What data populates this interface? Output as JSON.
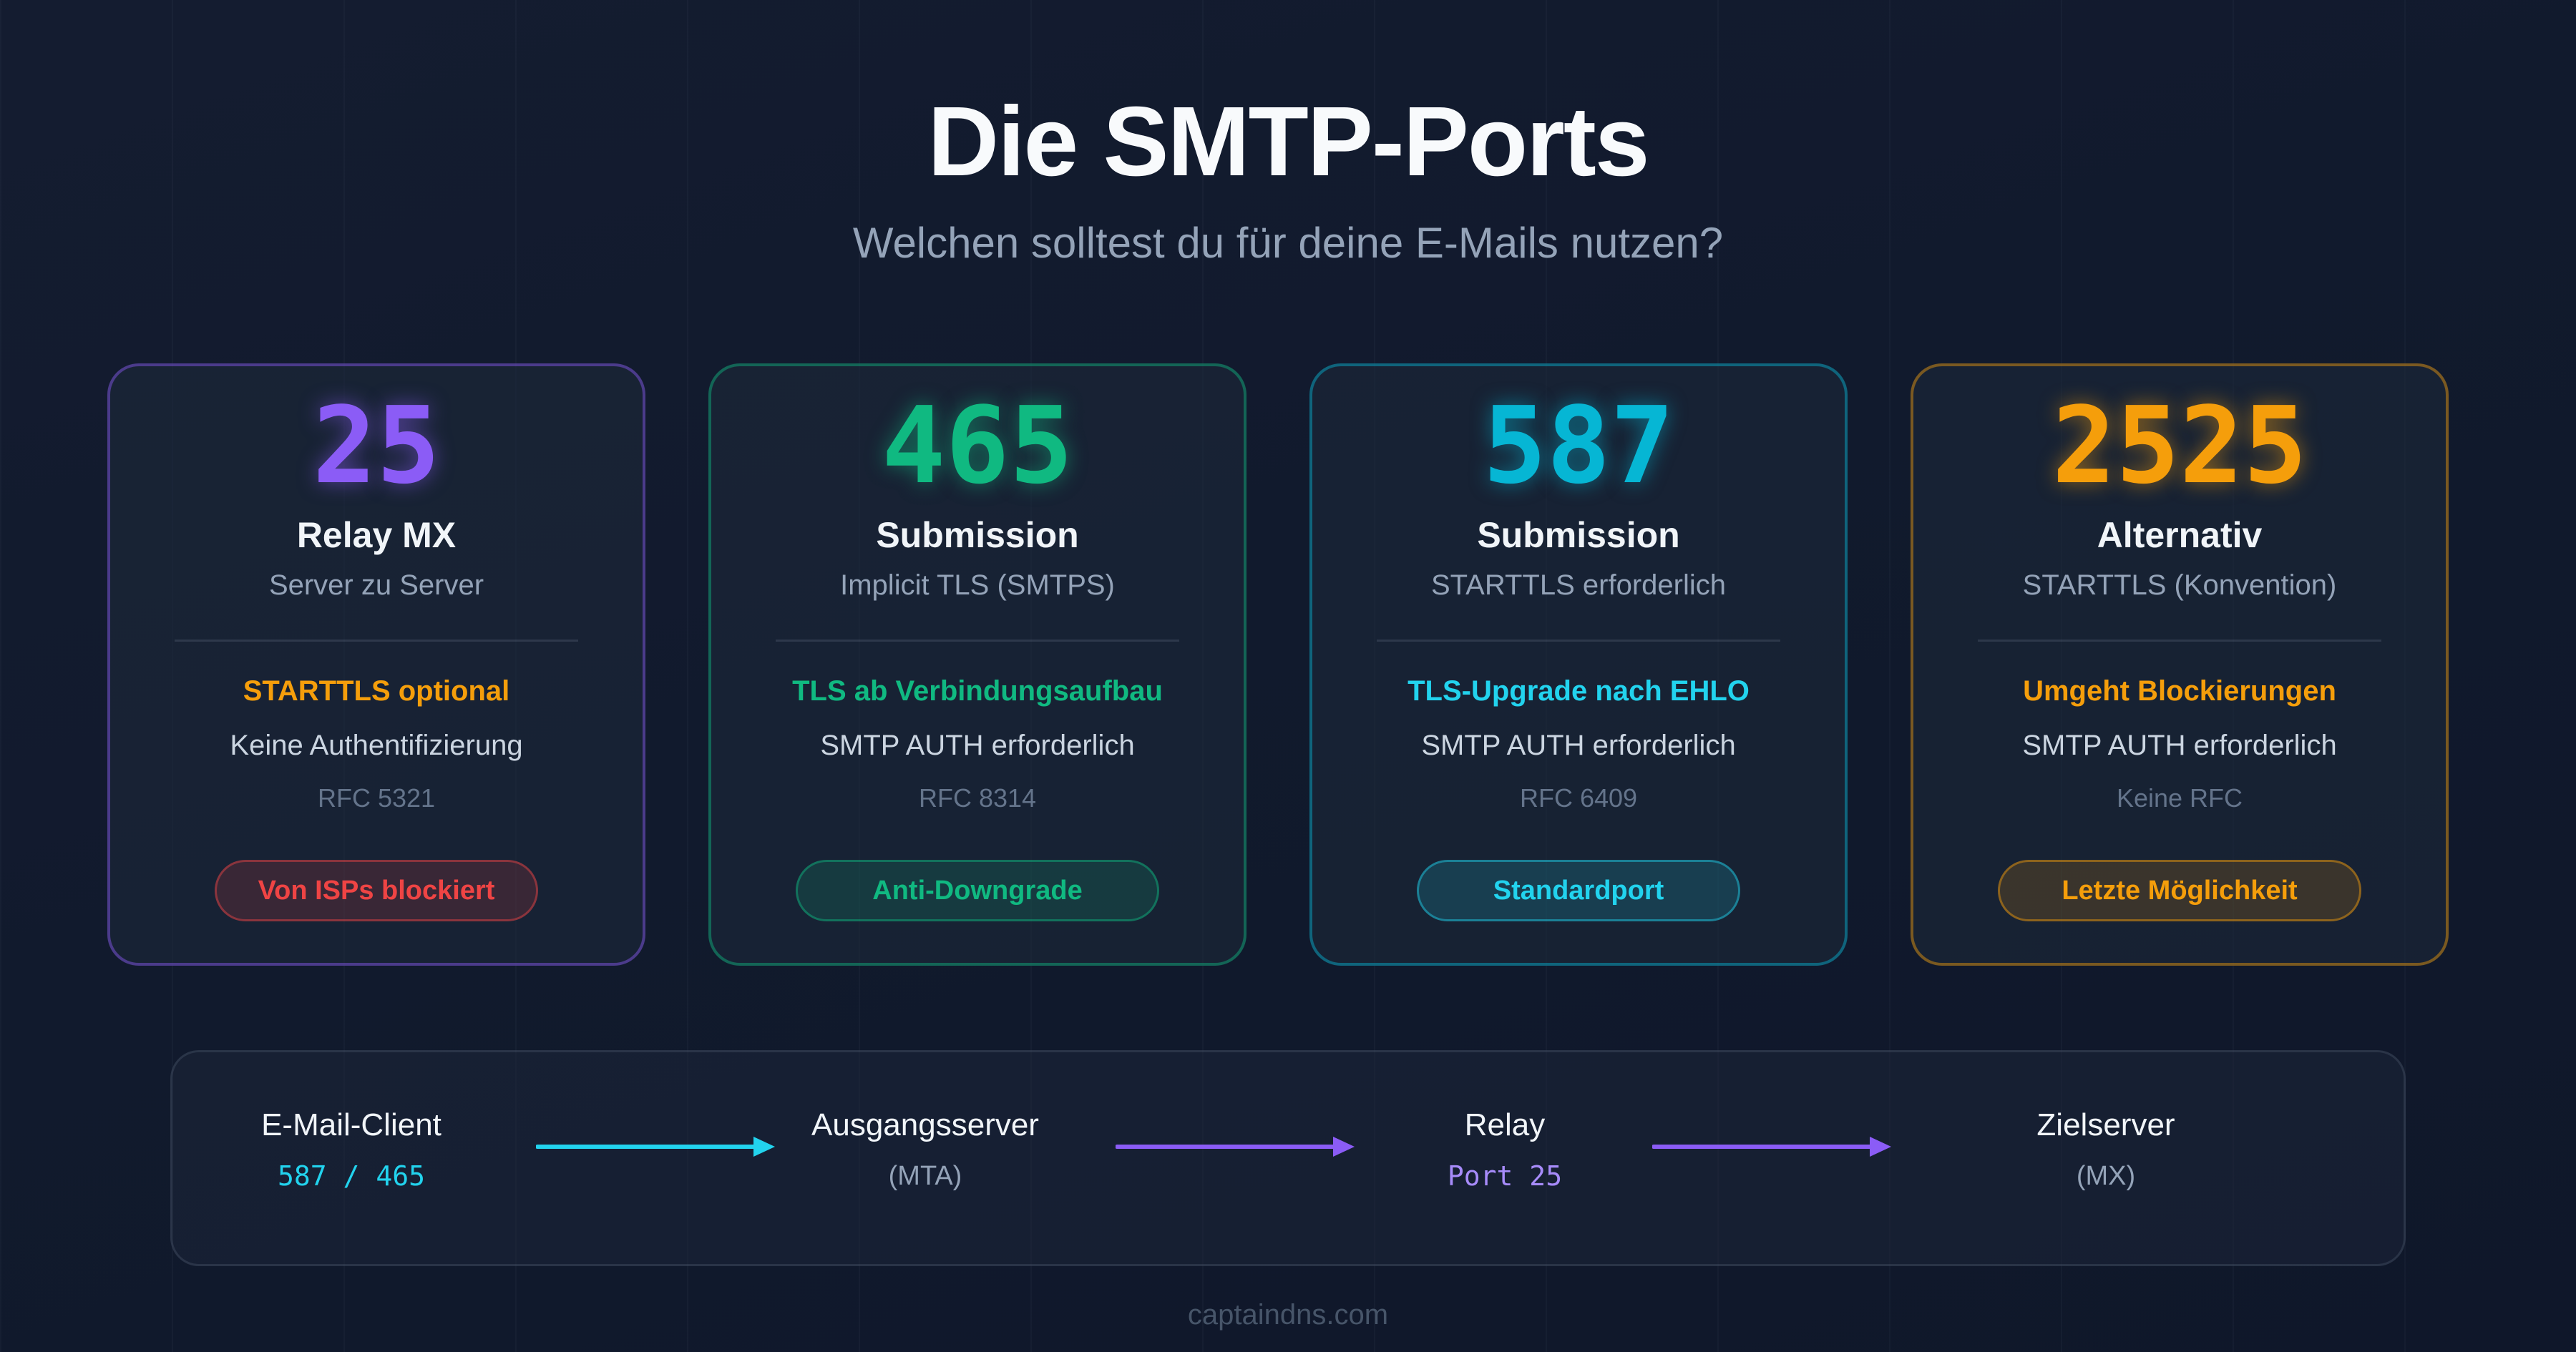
{
  "header": {
    "title": "Die SMTP-Ports",
    "subtitle": "Welchen solltest du für deine E-Mails nutzen?"
  },
  "cards": [
    {
      "port": "25",
      "name": "Relay MX",
      "description": "Server zu Server",
      "feature": "STARTTLS optional",
      "auth": "Keine Authentifizierung",
      "rfc": "RFC 5321",
      "badge": "Von ISPs blockiert",
      "accent": "#8b5cf6",
      "feature_color": "#f59e0b",
      "badge_color": "#ef4444"
    },
    {
      "port": "465",
      "name": "Submission",
      "description": "Implicit TLS (SMTPS)",
      "feature": "TLS ab Verbindungsaufbau",
      "auth": "SMTP AUTH erforderlich",
      "rfc": "RFC 8314",
      "badge": "Anti-Downgrade",
      "accent": "#10b981",
      "feature_color": "#10b981",
      "badge_color": "#10b981"
    },
    {
      "port": "587",
      "name": "Submission",
      "description": "STARTTLS erforderlich",
      "feature": "TLS-Upgrade nach EHLO",
      "auth": "SMTP AUTH erforderlich",
      "rfc": "RFC 6409",
      "badge": "Standardport",
      "accent": "#06b6d4",
      "feature_color": "#22d3ee",
      "badge_color": "#22d3ee"
    },
    {
      "port": "2525",
      "name": "Alternativ",
      "description": "STARTTLS (Konvention)",
      "feature": "Umgeht Blockierungen",
      "auth": "SMTP AUTH erforderlich",
      "rfc": "Keine RFC",
      "badge": "Letzte Möglichkeit",
      "accent": "#f59e0b",
      "feature_color": "#f59e0b",
      "badge_color": "#f59e0b"
    }
  ],
  "flow": {
    "nodes": [
      {
        "label": "E-Mail-Client",
        "sub": "587 / 465"
      },
      {
        "label": "Ausgangsserver",
        "sub": "(MTA)"
      },
      {
        "label": "Relay",
        "sub": "Port 25"
      },
      {
        "label": "Zielserver",
        "sub": "(MX)"
      }
    ],
    "arrow_colors": [
      "#22d3ee",
      "#8b5cf6",
      "#8b5cf6"
    ],
    "sub_colors": [
      "#22d3ee",
      "#94a3b8",
      "#a78bfa",
      "#94a3b8"
    ]
  },
  "footer": {
    "text": "captaindns.com"
  }
}
